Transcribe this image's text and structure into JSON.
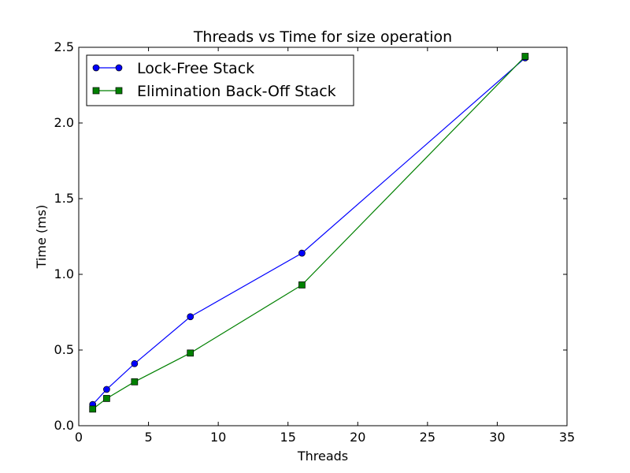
{
  "chart_data": {
    "type": "line",
    "title": "Threads vs Time for size operation",
    "xlabel": "Threads",
    "ylabel": "Time (ms)",
    "xlim": [
      0,
      35
    ],
    "ylim": [
      0.0,
      2.5
    ],
    "xticks": [
      0,
      5,
      10,
      15,
      20,
      25,
      30,
      35
    ],
    "xtick_labels": [
      "0",
      "5",
      "10",
      "15",
      "20",
      "25",
      "30",
      "35"
    ],
    "yticks": [
      0.0,
      0.5,
      1.0,
      1.5,
      2.0,
      2.5
    ],
    "ytick_labels": [
      "0.0",
      "0.5",
      "1.0",
      "1.5",
      "2.0",
      "2.5"
    ],
    "grid": false,
    "legend_position": "upper-left",
    "series": [
      {
        "name": "Lock-Free Stack",
        "color": "#0000ff",
        "marker": "circle",
        "x": [
          1,
          2,
          4,
          8,
          16,
          32
        ],
        "y": [
          0.14,
          0.24,
          0.41,
          0.72,
          1.14,
          2.43
        ]
      },
      {
        "name": "Elimination Back-Off Stack",
        "color": "#008000",
        "marker": "square",
        "x": [
          1,
          2,
          4,
          8,
          16,
          32
        ],
        "y": [
          0.11,
          0.18,
          0.29,
          0.48,
          0.93,
          2.44
        ]
      }
    ]
  }
}
